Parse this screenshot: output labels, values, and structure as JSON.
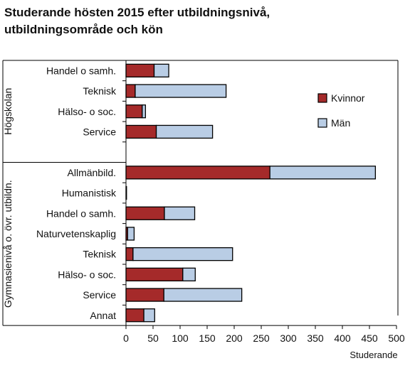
{
  "chart_data": {
    "type": "bar",
    "orientation": "horizontal",
    "stacked": true,
    "title_lines": [
      "Studerande hösten 2015 efter utbildningsnivå,",
      "utbildningsområde och kön"
    ],
    "xlabel": "Studerande",
    "xlim": [
      0,
      500
    ],
    "xticks": [
      0,
      50,
      100,
      150,
      200,
      250,
      300,
      350,
      400,
      450,
      500
    ],
    "grid": false,
    "legend_position": "right",
    "series": [
      {
        "name": "Kvinnor",
        "color": "#a52a2a"
      },
      {
        "name": "Män",
        "color": "#b9cde5"
      }
    ],
    "groups": [
      {
        "name": "Högskolan",
        "categories": [
          {
            "label": "Handel o samh.",
            "values": [
              52,
              27
            ]
          },
          {
            "label": "Teknisk",
            "values": [
              17,
              168
            ]
          },
          {
            "label": "Hälso- o soc.",
            "values": [
              30,
              6
            ]
          },
          {
            "label": "Service",
            "values": [
              56,
              104
            ]
          },
          {
            "label": "",
            "values": [
              0,
              0
            ]
          }
        ]
      },
      {
        "name": "Gymnasienivå o. övr. utbildn.",
        "categories": [
          {
            "label": "Allmänbild.",
            "values": [
              266,
              195
            ]
          },
          {
            "label": "Humanistisk",
            "values": [
              1,
              0
            ]
          },
          {
            "label": "Handel o samh.",
            "values": [
              71,
              56
            ]
          },
          {
            "label": "Naturvetenskaplig",
            "values": [
              3,
              12
            ]
          },
          {
            "label": "Teknisk",
            "values": [
              13,
              184
            ]
          },
          {
            "label": "Hälso- o soc.",
            "values": [
              105,
              23
            ]
          },
          {
            "label": "Service",
            "values": [
              70,
              144
            ]
          },
          {
            "label": "Annat",
            "values": [
              33,
              20
            ]
          }
        ]
      }
    ]
  }
}
